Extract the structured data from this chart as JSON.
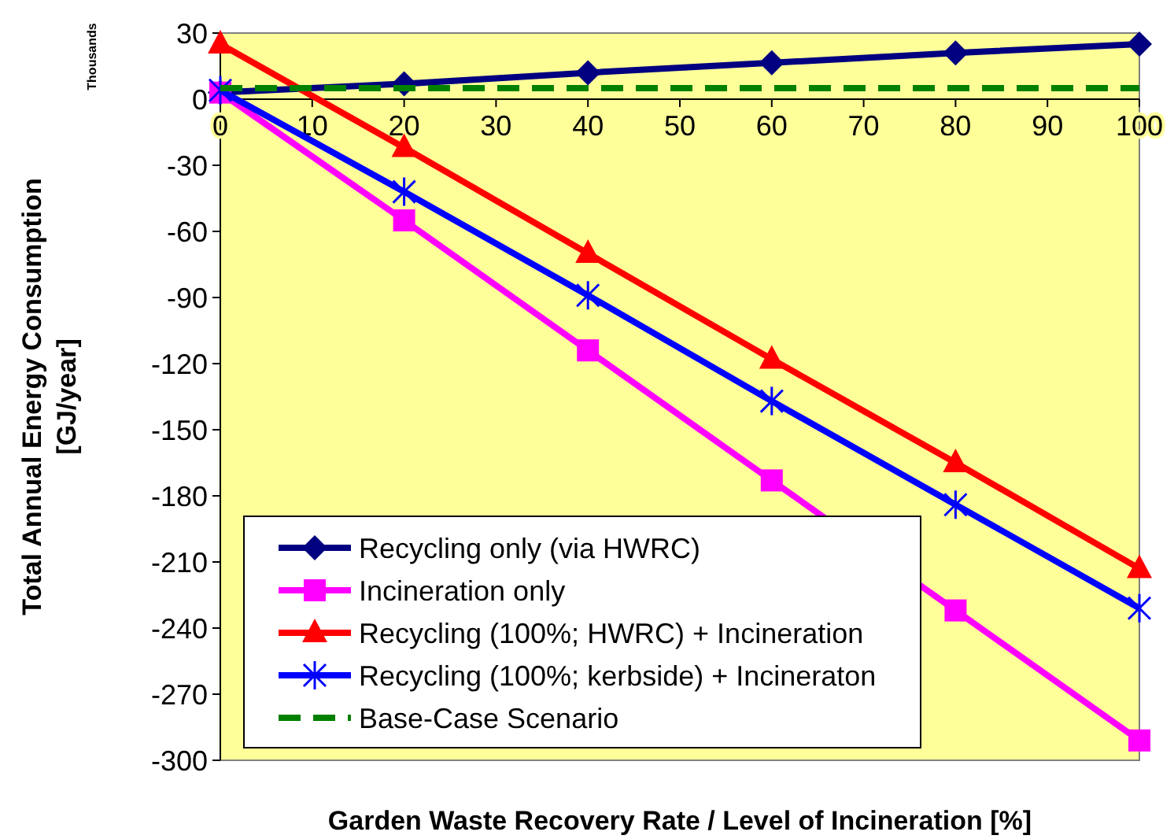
{
  "chart_data": {
    "type": "line",
    "xlabel": "Garden Waste Recovery Rate  / Level of Incineration  [%]",
    "ylabel": "Total Annual Energy Consumption\n[GJ/year]",
    "annotations": [
      "Thousands"
    ],
    "x": [
      0,
      20,
      40,
      60,
      80,
      100
    ],
    "xlim": [
      0,
      100
    ],
    "xticks": [
      0,
      10,
      20,
      30,
      40,
      50,
      60,
      70,
      80,
      90,
      100
    ],
    "ylim": [
      -300,
      30
    ],
    "yticks": [
      -300,
      -270,
      -240,
      -210,
      -180,
      -150,
      -120,
      -90,
      -60,
      -30,
      0,
      30
    ],
    "grid": false,
    "legend": "bottom left",
    "series": [
      {
        "name": "Recycling only (via HWRC)",
        "color": "#000080",
        "marker": "diamond",
        "values": [
          3,
          7,
          12,
          16.5,
          21,
          25
        ]
      },
      {
        "name": "Incineration only",
        "color": "#ff00ff",
        "marker": "square",
        "values": [
          3,
          -55,
          -114,
          -173,
          -232,
          -291
        ]
      },
      {
        "name": "Recycling (100%; HWRC) + Incineration",
        "color": "#ff0000",
        "marker": "triangle",
        "values": [
          25,
          -22,
          -70,
          -118,
          -165,
          -213
        ]
      },
      {
        "name": "Recycling (100%; kerbside) + Incineraton",
        "color": "#0000ff",
        "marker": "cross",
        "values": [
          4,
          -42,
          -89,
          -137,
          -184,
          -231
        ]
      },
      {
        "name": "Base-Case Scenario",
        "color": "#008000",
        "marker": "none",
        "line_style": "dashed",
        "values": [
          5,
          5,
          5,
          5,
          5,
          5
        ]
      }
    ]
  }
}
